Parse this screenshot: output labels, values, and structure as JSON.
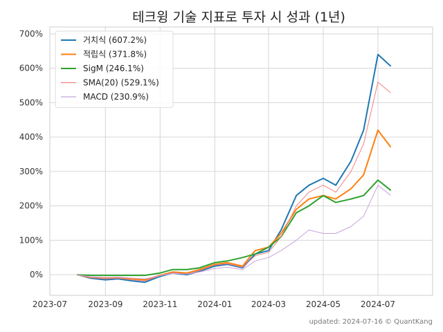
{
  "chart_data": {
    "type": "line",
    "title": "테크윙 기술 지표로 투자 시 성과 (1년)",
    "footer": "updated: 2024-07-16 © QuantKang",
    "xlabel": "",
    "ylabel": "",
    "grid": true,
    "legend_position": "top-left",
    "x_range": [
      "2023-07-01",
      "2024-08-31"
    ],
    "y_range": [
      -60,
      720
    ],
    "x_ticks": [
      "2023-07",
      "2023-09",
      "2023-11",
      "2024-01",
      "2024-03",
      "2024-05",
      "2024-07"
    ],
    "y_ticks": [
      "0%",
      "100%",
      "200%",
      "300%",
      "400%",
      "500%",
      "600%",
      "700%"
    ],
    "y_tick_values": [
      0,
      100,
      200,
      300,
      400,
      500,
      600,
      700
    ],
    "dates": [
      "2023-08-01",
      "2023-08-15",
      "2023-09-01",
      "2023-09-15",
      "2023-10-01",
      "2023-10-15",
      "2023-11-01",
      "2023-11-15",
      "2023-12-01",
      "2023-12-15",
      "2024-01-01",
      "2024-01-15",
      "2024-02-01",
      "2024-02-15",
      "2024-03-01",
      "2024-03-15",
      "2024-04-01",
      "2024-04-15",
      "2024-05-01",
      "2024-05-15",
      "2024-06-01",
      "2024-06-15",
      "2024-07-01",
      "2024-07-15"
    ],
    "series": [
      {
        "name": "거치식 (607.2%)",
        "color": "#1f77b4",
        "width": 2,
        "values": [
          0,
          -10,
          -15,
          -12,
          -18,
          -22,
          -5,
          5,
          0,
          10,
          25,
          30,
          20,
          60,
          70,
          130,
          230,
          260,
          280,
          260,
          330,
          420,
          640,
          607
        ]
      },
      {
        "name": "적립식 (371.8%)",
        "color": "#ff7f0e",
        "width": 2,
        "values": [
          0,
          -8,
          -10,
          -9,
          -12,
          -15,
          -2,
          8,
          5,
          15,
          30,
          35,
          25,
          70,
          80,
          120,
          190,
          220,
          230,
          220,
          250,
          290,
          420,
          372
        ]
      },
      {
        "name": "SigM (246.1%)",
        "color": "#2ca02c",
        "width": 2,
        "values": [
          0,
          -2,
          -2,
          -2,
          -2,
          -2,
          5,
          15,
          15,
          20,
          35,
          40,
          50,
          60,
          80,
          110,
          180,
          200,
          230,
          210,
          220,
          230,
          275,
          246
        ]
      },
      {
        "name": "SMA(20)  (529.1%)",
        "color": "#f08080",
        "width": 1,
        "values": [
          0,
          -8,
          -12,
          -10,
          -15,
          -18,
          -3,
          6,
          2,
          12,
          28,
          32,
          22,
          55,
          65,
          110,
          200,
          240,
          260,
          240,
          300,
          380,
          560,
          529
        ]
      },
      {
        "name": "MACD (230.9%)",
        "color": "#c8a2dc",
        "width": 1,
        "values": [
          0,
          -6,
          -8,
          -7,
          -10,
          -12,
          -3,
          4,
          2,
          8,
          18,
          22,
          15,
          40,
          50,
          70,
          100,
          130,
          120,
          120,
          140,
          170,
          260,
          231
        ]
      }
    ]
  }
}
